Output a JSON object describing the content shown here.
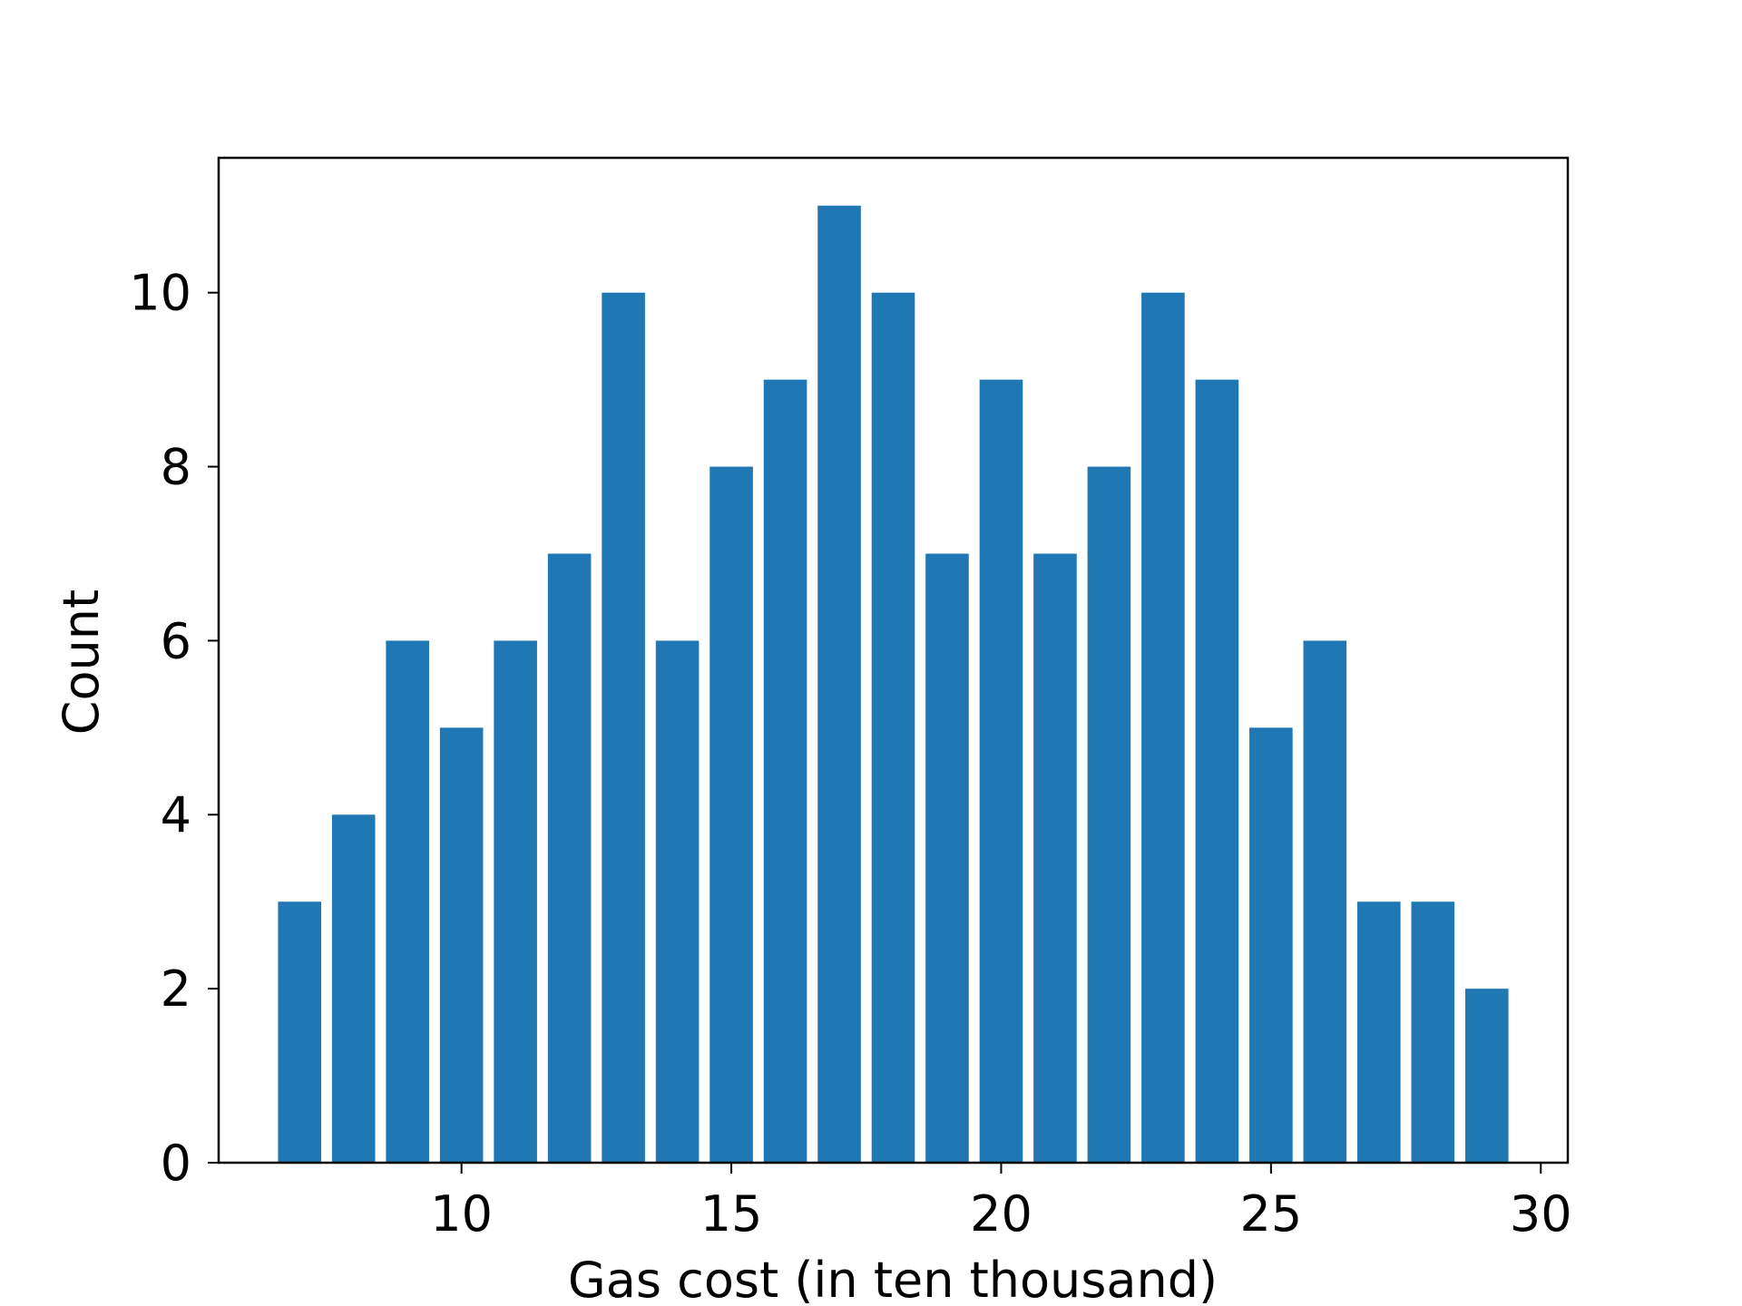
{
  "chart_data": {
    "type": "bar",
    "xlabel": "Gas cost (in ten thousand)",
    "ylabel": "Count",
    "xlim": [
      5.5,
      30.5
    ],
    "ylim": [
      0,
      11.55
    ],
    "x_ticks": [
      10,
      15,
      20,
      25,
      30
    ],
    "y_ticks": [
      0,
      2,
      4,
      6,
      8,
      10
    ],
    "bar_width": 0.8,
    "grid": false,
    "legend": "none",
    "colors": {
      "bar": "#1f77b4",
      "axis": "#000000"
    },
    "x": [
      7,
      8,
      9,
      10,
      11,
      12,
      13,
      14,
      15,
      16,
      17,
      18,
      19,
      20,
      21,
      22,
      23,
      24,
      25,
      26,
      27,
      28,
      29
    ],
    "values": [
      3,
      4,
      6,
      5,
      6,
      7,
      10,
      6,
      8,
      9,
      11,
      10,
      7,
      9,
      7,
      8,
      10,
      9,
      5,
      6,
      3,
      3,
      2
    ]
  }
}
